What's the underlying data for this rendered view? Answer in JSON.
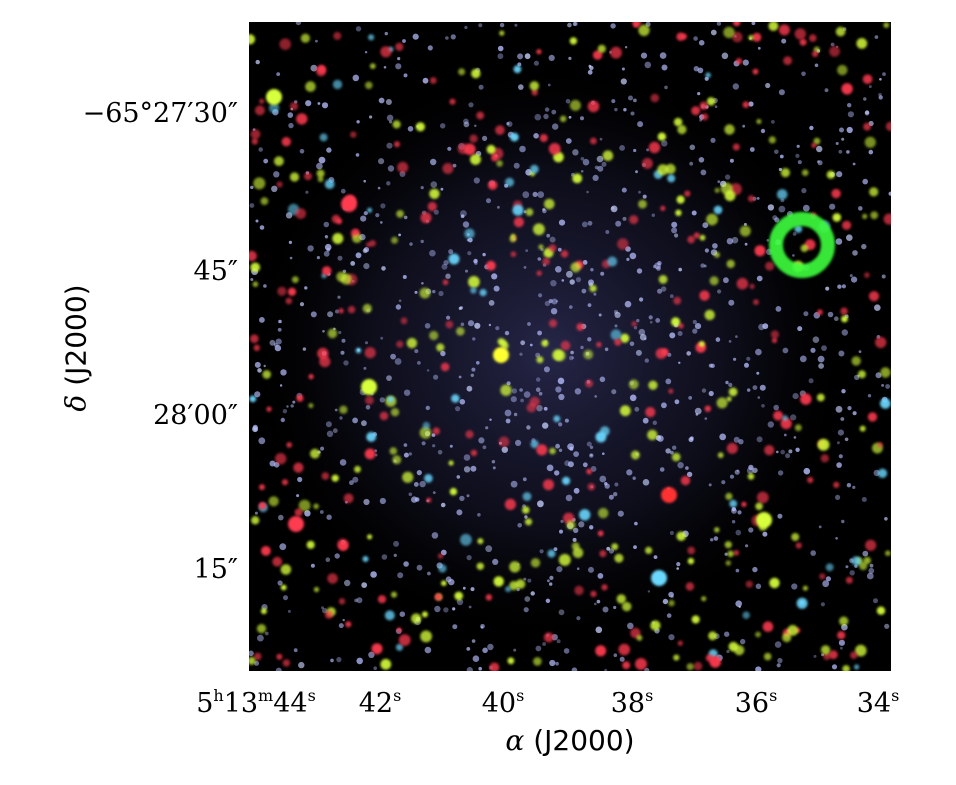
{
  "image": {
    "description_type": "three-color star cluster image",
    "frame_color": "#000000",
    "background_color": "#0a0a14",
    "star_colors": [
      "#c8d2ff",
      "#ff3a50",
      "#d8ff3a",
      "#b8c0ff",
      "#6ad8ff"
    ],
    "ring_color": "#3cff3c"
  },
  "axes": {
    "xlabel_symbol": "α",
    "xlabel_text": " (J2000)",
    "ylabel_symbol": "δ",
    "ylabel_text": " (J2000)",
    "x_ticks": [
      {
        "prefix": "5",
        "h": "h",
        "mid": "13",
        "m": "m",
        "val": "44",
        "unit": "s"
      },
      {
        "val": "42",
        "unit": "s"
      },
      {
        "val": "40",
        "unit": "s"
      },
      {
        "val": "38",
        "unit": "s"
      },
      {
        "val": "36",
        "unit": "s"
      },
      {
        "val": "34",
        "unit": "s"
      }
    ],
    "y_ticks": [
      "−65°27′30″",
      "45″",
      "28′00″",
      "15″"
    ]
  }
}
